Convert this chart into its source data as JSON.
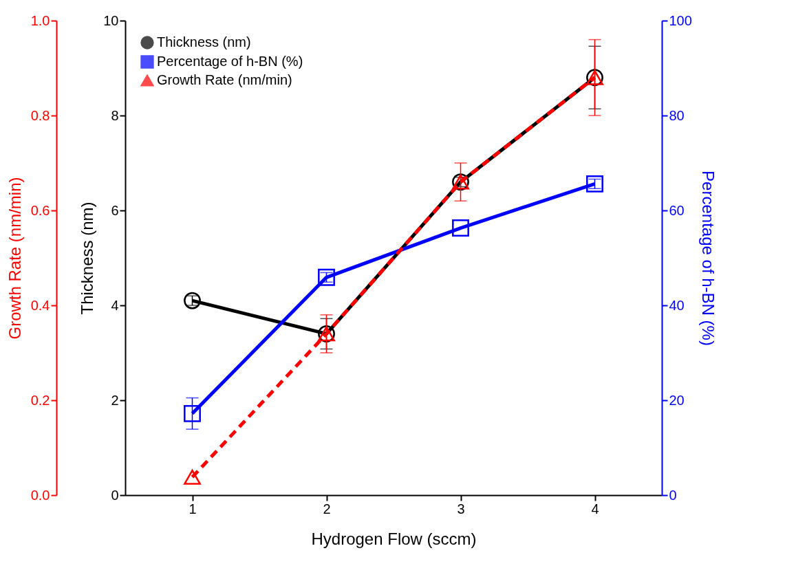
{
  "chart_data": {
    "type": "line",
    "xlabel": "Hydrogen Flow (sccm)",
    "ylabel": "Thickness (nm)",
    "y2label": "Percentage of h-BN (%)",
    "y3label": "Growth Rate (nm/min)",
    "x": [
      1,
      2,
      3,
      4
    ],
    "xlim": [
      0.5,
      4.5
    ],
    "xticks": [
      1,
      2,
      3,
      4
    ],
    "ylim": [
      0,
      10
    ],
    "yticks": [
      0,
      2,
      4,
      6,
      8,
      10
    ],
    "y2lim": [
      0,
      100
    ],
    "y2ticks": [
      0,
      20,
      40,
      60,
      80,
      100
    ],
    "y3lim": [
      0,
      1
    ],
    "y3ticks": [
      {
        "value": 0,
        "label": "0.0"
      },
      {
        "value": 0.2,
        "label": "0.2"
      },
      {
        "value": 0.4,
        "label": "0.4"
      },
      {
        "value": 0.6,
        "label": "0.6"
      },
      {
        "value": 0.8,
        "label": "0.8"
      },
      {
        "value": 1,
        "label": "1.0"
      }
    ],
    "legend": "top left",
    "grid": false,
    "series": [
      {
        "name": "Thickness (nm)",
        "color": "#000000",
        "axis": "y",
        "marker": "circle",
        "line_style": "solid",
        "values": [
          4.1,
          3.4,
          6.6,
          8.8
        ],
        "errors": [
          0.1,
          0.32,
          0.1,
          0.66
        ]
      },
      {
        "name": "Percentage of h-BN (%)",
        "color": "#0000ff",
        "axis": "y2",
        "marker": "square",
        "line_style": "solid",
        "values": [
          17.2,
          45.9,
          56.3,
          65.6
        ],
        "errors": [
          3.3,
          1,
          null,
          1
        ]
      },
      {
        "name": "Growth Rate (nm/min)",
        "color": "#ff0000",
        "axis": "y3",
        "marker": "triangle",
        "line_style": "dashed",
        "values": [
          0.038,
          0.34,
          0.66,
          0.88
        ],
        "errors": [
          null,
          0.04,
          0.04,
          0.08
        ]
      }
    ]
  }
}
